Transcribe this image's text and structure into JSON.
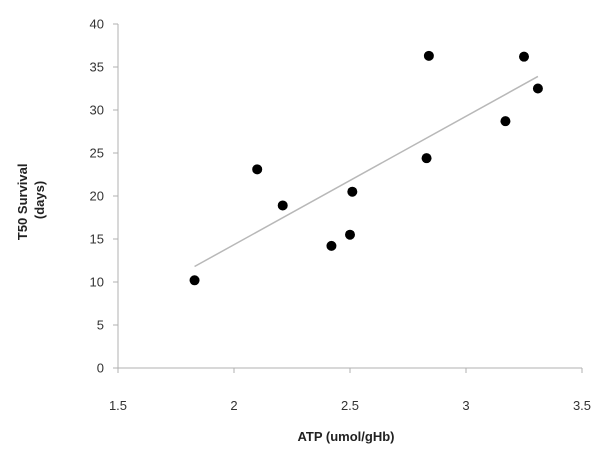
{
  "chart_data": {
    "type": "scatter",
    "title": "",
    "xlabel": "ATP (umol/gHb)",
    "ylabel_line1": "T50 Survival",
    "ylabel_line2": "(days)",
    "xlim": [
      1.5,
      3.5
    ],
    "ylim": [
      0,
      40
    ],
    "x_ticks": [
      1.5,
      2,
      2.5,
      3,
      3.5
    ],
    "x_tick_labels": [
      "1.5",
      "2",
      "2.5",
      "3",
      "3.5"
    ],
    "y_ticks": [
      0,
      5,
      10,
      15,
      20,
      25,
      30,
      35,
      40
    ],
    "y_tick_labels": [
      "0",
      "5",
      "10",
      "15",
      "20",
      "25",
      "30",
      "35",
      "40"
    ],
    "grid": false,
    "legend": "none",
    "series": [
      {
        "points": [
          {
            "x": 1.83,
            "y": 10.2
          },
          {
            "x": 2.1,
            "y": 23.1
          },
          {
            "x": 2.21,
            "y": 18.9
          },
          {
            "x": 2.42,
            "y": 14.2
          },
          {
            "x": 2.5,
            "y": 15.5
          },
          {
            "x": 2.51,
            "y": 20.5
          },
          {
            "x": 2.83,
            "y": 24.4
          },
          {
            "x": 2.84,
            "y": 36.3
          },
          {
            "x": 3.17,
            "y": 28.7
          },
          {
            "x": 3.25,
            "y": 36.2
          },
          {
            "x": 3.31,
            "y": 32.5
          }
        ],
        "color": "#000000"
      }
    ],
    "trendline": {
      "type": "linear",
      "x_range": [
        1.83,
        3.31
      ],
      "y_range": [
        11.8,
        33.9
      ],
      "color": "#b8b8b8"
    },
    "axis_color": "#b0b0b0"
  }
}
